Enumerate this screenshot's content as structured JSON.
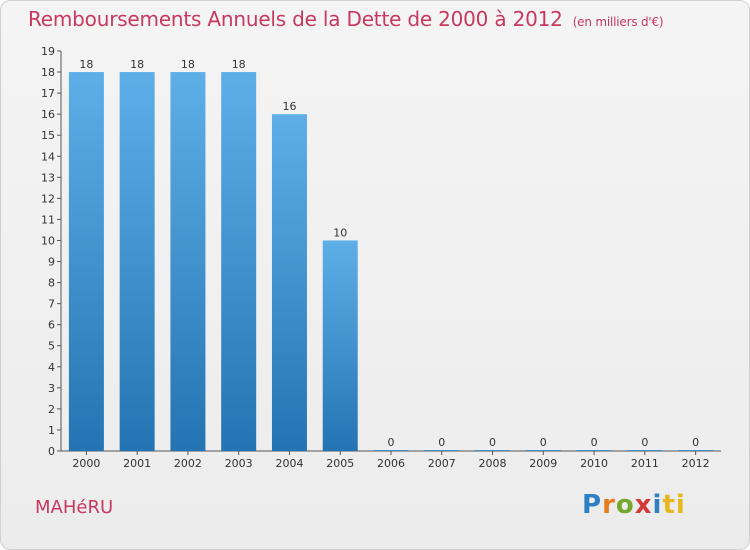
{
  "header": {
    "title": "Remboursements Annuels de la Dette de 2000 à 2012",
    "unit": "(en milliers d'€)"
  },
  "footer": {
    "commune": "MAHéRU",
    "logo_letters": [
      "P",
      "r",
      "o",
      "x",
      "i",
      "ti"
    ]
  },
  "chart_data": {
    "type": "bar",
    "categories": [
      "2000",
      "2001",
      "2002",
      "2003",
      "2004",
      "2005",
      "2006",
      "2007",
      "2008",
      "2009",
      "2010",
      "2011",
      "2012"
    ],
    "values": [
      18,
      18,
      18,
      18,
      16,
      10,
      0,
      0,
      0,
      0,
      0,
      0,
      0
    ],
    "title": "Remboursements Annuels de la Dette de 2000 à 2012",
    "xlabel": "",
    "ylabel": "",
    "ylim": [
      0,
      19
    ],
    "yticks": [
      0,
      1,
      2,
      3,
      4,
      5,
      6,
      7,
      8,
      9,
      10,
      11,
      12,
      13,
      14,
      15,
      16,
      17,
      18,
      19
    ],
    "grid": false,
    "data_labels": true,
    "colors": {
      "bar_top": "#5eafe8",
      "bar_bottom": "#2474b3",
      "axis": "#555555"
    }
  }
}
